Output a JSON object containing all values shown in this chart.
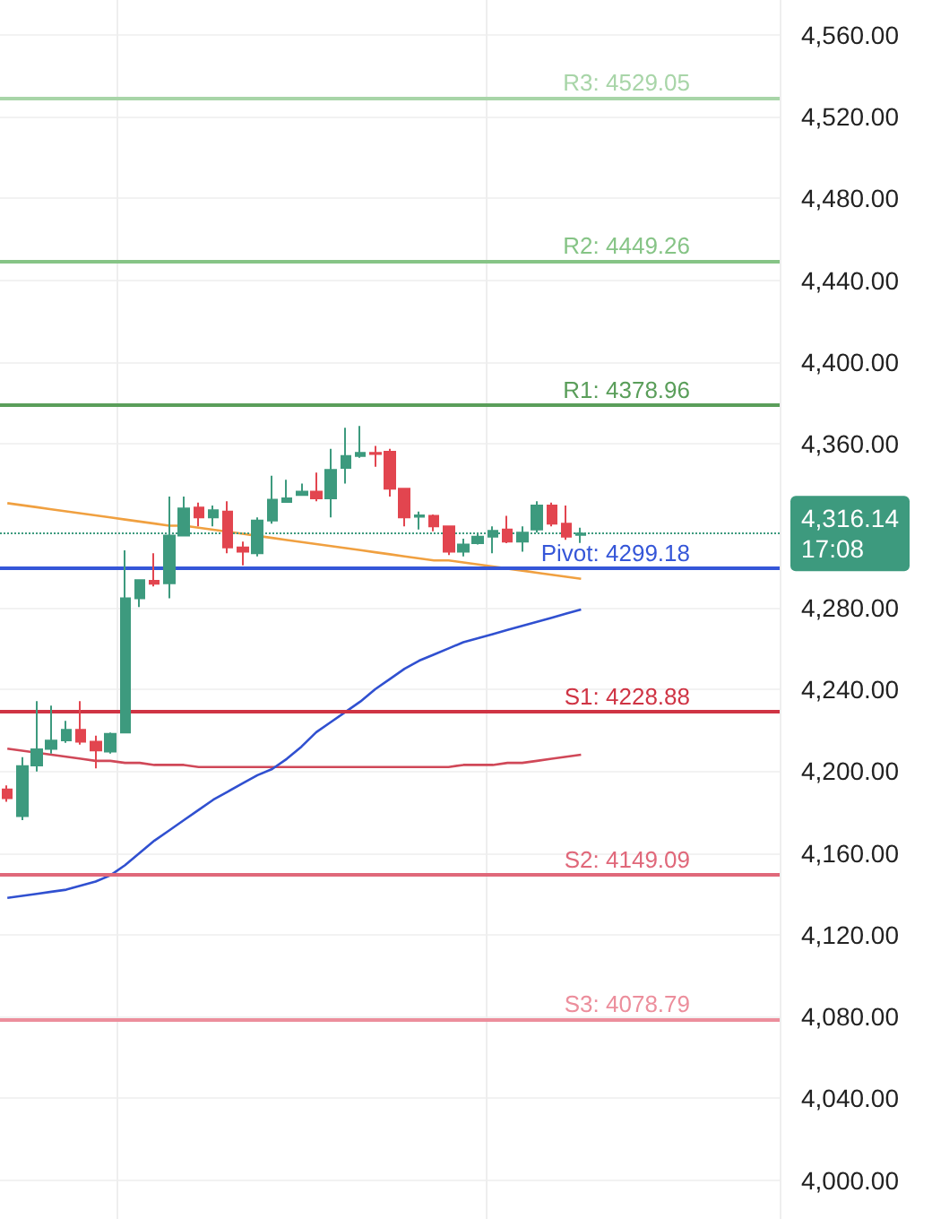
{
  "chart_data": {
    "type": "candlestick",
    "categories": [
      null,
      null,
      null,
      null,
      null,
      null,
      null,
      null,
      null,
      null,
      null,
      null,
      null,
      null,
      null,
      null,
      null,
      null,
      null,
      null,
      null,
      null,
      null,
      null,
      null,
      null,
      null,
      null,
      null,
      null,
      null,
      null,
      null,
      null,
      null,
      null,
      null,
      null,
      null,
      null
    ],
    "ohlc": [
      [
        4191,
        4193,
        4185,
        4186.7
      ],
      [
        4178,
        4206.8,
        4176,
        4202.4
      ],
      [
        4202.7,
        4234.2,
        4199.8,
        4210.6
      ],
      [
        4210.9,
        4232,
        4208.5,
        4214.9
      ],
      [
        4215,
        4224.6,
        4213.8,
        4220.2
      ],
      [
        4220.2,
        4234.2,
        4212.9,
        4214.4
      ],
      [
        4214.4,
        4217.3,
        4201.3,
        4210.1
      ],
      [
        4209.5,
        4218.8,
        4208.5,
        4218.2
      ],
      [
        4218.8,
        4307.9,
        4218.8,
        4284.5
      ],
      [
        4284.5,
        4293.8,
        4280.2,
        4293.3
      ],
      [
        4293,
        4306.5,
        4290.3,
        4291.6
      ],
      [
        4291.8,
        4334.2,
        4284.5,
        4315.2
      ],
      [
        4315.2,
        4334.2,
        4315.2,
        4328.4
      ],
      [
        4328.9,
        4331.3,
        4319.6,
        4324
      ],
      [
        4324,
        4329.8,
        4319.6,
        4327.5
      ],
      [
        4326.9,
        4331.9,
        4306.5,
        4309.4
      ],
      [
        4309.4,
        4312.2,
        4300.6,
        4307.3
      ],
      [
        4306.5,
        4324,
        4305,
        4322.5
      ],
      [
        4322.5,
        4344.4,
        4321,
        4332.7
      ],
      [
        4331.6,
        4342.4,
        4331.6,
        4333.3
      ],
      [
        4335,
        4340.6,
        4334.8,
        4336.6
      ],
      [
        4336.6,
        4345.9,
        4331.9,
        4333.3
      ],
      [
        4333.3,
        4357.6,
        4324,
        4347.3
      ],
      [
        4348.2,
        4367.8,
        4340.6,
        4354.1
      ],
      [
        4354.1,
        4368.7,
        4353.2,
        4355.6
      ],
      [
        4355.6,
        4359,
        4348.8,
        4355
      ],
      [
        4356.1,
        4357.6,
        4334.2,
        4338
      ],
      [
        4338,
        4338,
        4319.6,
        4324
      ],
      [
        4324.4,
        4326.9,
        4318.1,
        4325
      ],
      [
        4324.8,
        4325.4,
        4317.2,
        4319.6
      ],
      [
        4319.6,
        4319.6,
        4305.6,
        4307.3
      ],
      [
        4307.3,
        4313.6,
        4305,
        4310.8
      ],
      [
        4311.4,
        4316.6,
        4310.8,
        4314.6
      ],
      [
        4314.6,
        4319.6,
        4306.5,
        4317.5
      ],
      [
        4318.1,
        4324.8,
        4311.4,
        4312.2
      ],
      [
        4312.2,
        4319.6,
        4307.3,
        4316.6
      ],
      [
        4318.1,
        4331.9,
        4316.6,
        4329.8
      ],
      [
        4329.8,
        4331.3,
        4319.6,
        4321
      ],
      [
        4321,
        4329.8,
        4313.1,
        4314.6
      ],
      [
        4315.5,
        4319,
        4311.5,
        4316.14
      ]
    ],
    "colors": [
      "#e2454f",
      "#3d9a7e",
      "#3d9a7e",
      "#3d9a7e",
      "#3d9a7e",
      "#e2454f",
      "#e2454f",
      "#3d9a7e",
      "#3d9a7e",
      "#3d9a7e",
      "#e2454f",
      "#3d9a7e",
      "#3d9a7e",
      "#e2454f",
      "#3d9a7e",
      "#e2454f",
      "#e2454f",
      "#3d9a7e",
      "#3d9a7e",
      "#3d9a7e",
      "#3d9a7e",
      "#e2454f",
      "#3d9a7e",
      "#3d9a7e",
      "#3d9a7e",
      "#e2454f",
      "#e2454f",
      "#e2454f",
      "#3d9a7e",
      "#e2454f",
      "#e2454f",
      "#3d9a7e",
      "#3d9a7e",
      "#3d9a7e",
      "#e2454f",
      "#3d9a7e",
      "#3d9a7e",
      "#e2454f",
      "#e2454f",
      "#3d9a7e"
    ],
    "series": [
      {
        "type": "line",
        "color": "#f0a040",
        "values": [
          4331,
          4330,
          4329,
          4328,
          4327,
          4326,
          4325,
          4324,
          4323,
          4322,
          4321,
          4320,
          4320,
          4319,
          4318,
          4317,
          4316,
          4315,
          4314,
          4313,
          4312,
          4311,
          4310,
          4309,
          4308,
          4307,
          4306,
          4305,
          4304,
          4303,
          4303,
          4302,
          4301,
          4300,
          4299,
          4298,
          4297,
          4296,
          4295,
          4294
        ]
      },
      {
        "type": "line",
        "color": "#d04858",
        "values": [
          4211,
          4210,
          4209,
          4208,
          4207,
          4206,
          4205,
          4205,
          4204,
          4204,
          4203,
          4203,
          4203,
          4202,
          4202,
          4202,
          4202,
          4202,
          4202,
          4202,
          4202,
          4202,
          4202,
          4202,
          4202,
          4202,
          4202,
          4202,
          4202,
          4202,
          4202,
          4203,
          4203,
          4203,
          4204,
          4204,
          4205,
          4206,
          4207,
          4208
        ]
      },
      {
        "type": "line",
        "color": "#3050d0",
        "values": [
          4138,
          4139,
          4140,
          4141,
          4142,
          4144,
          4146,
          4149,
          4154,
          4160,
          4166,
          4171,
          4176,
          4181,
          4186,
          4190,
          4194,
          4198,
          4201,
          4206,
          4212,
          4219,
          4224,
          4229,
          4234,
          4240,
          4245,
          4250,
          4254,
          4257,
          4260,
          4263,
          4265,
          4267,
          4269,
          4271,
          4273,
          4275,
          4277,
          4279
        ]
      }
    ],
    "ylim": [
      3981,
      4577
    ],
    "yticks": [
      {
        "value": 4000,
        "label": "4,000.00"
      },
      {
        "value": 4040,
        "label": "4,040.00"
      },
      {
        "value": 4080,
        "label": "4,080.00"
      },
      {
        "value": 4120,
        "label": "4,120.00"
      },
      {
        "value": 4160,
        "label": "4,160.00"
      },
      {
        "value": 4200,
        "label": "4,200.00"
      },
      {
        "value": 4240,
        "label": "4,240.00"
      },
      {
        "value": 4280,
        "label": "4,280.00"
      },
      {
        "value": 4360,
        "label": "4,360.00"
      },
      {
        "value": 4400,
        "label": "4,400.00"
      },
      {
        "value": 4440,
        "label": "4,440.00"
      },
      {
        "value": 4480,
        "label": "4,480.00"
      },
      {
        "value": 4520,
        "label": "4,520.00"
      },
      {
        "value": 4560,
        "label": "4,560.00"
      }
    ],
    "ref_lines": [
      {
        "axis": "y",
        "value": 4529.05,
        "label": "R3: 4529.05",
        "color": "#a8d5a8"
      },
      {
        "axis": "y",
        "value": 4449.26,
        "label": "R2: 4449.26",
        "color": "#86c486"
      },
      {
        "axis": "y",
        "value": 4378.96,
        "label": "R1: 4378.96",
        "color": "#5a9e5a"
      },
      {
        "axis": "y",
        "value": 4299.18,
        "label": "Pivot: 4299.18",
        "color": "#3556d8"
      },
      {
        "axis": "y",
        "value": 4228.88,
        "label": "S1: 4228.88",
        "color": "#cf3444"
      },
      {
        "axis": "y",
        "value": 4149.09,
        "label": "S2: 4149.09",
        "color": "#e0687a"
      },
      {
        "axis": "y",
        "value": 4078.79,
        "label": "S3: 4078.79",
        "color": "#ec8e9c"
      },
      {
        "axis": "y",
        "value": 4316.14,
        "label": "4,316.14\n17:08",
        "color": "#3d9a7e",
        "line_style": "dotted"
      }
    ],
    "grid": true,
    "tick_labels": "y"
  }
}
